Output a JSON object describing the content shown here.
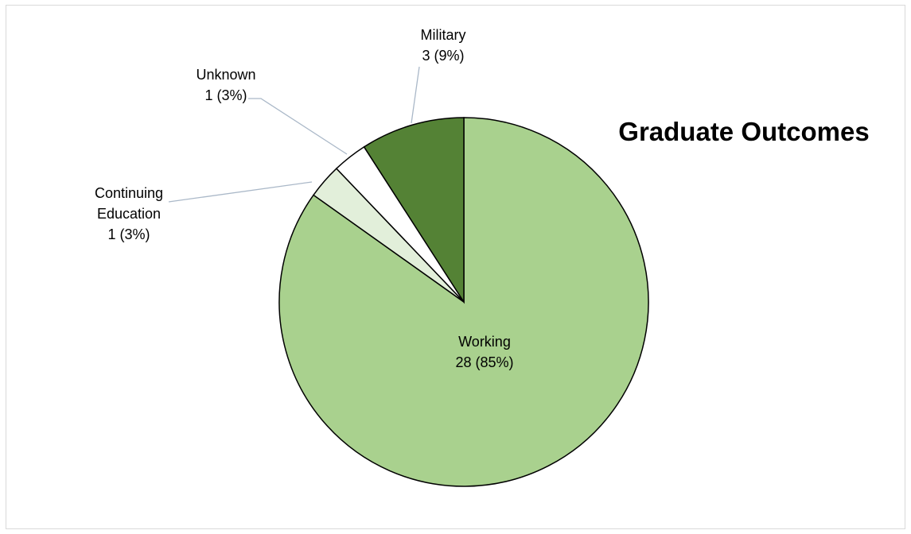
{
  "chart_data": {
    "type": "pie",
    "title": "Graduate Outcomes",
    "slices": [
      {
        "name": "Working",
        "value": 28,
        "percent": "85%",
        "color": "#a9d18e"
      },
      {
        "name": "Continuing Education",
        "value": 1,
        "percent": "3%",
        "color": "#e2efda"
      },
      {
        "name": "Unknown",
        "value": 1,
        "percent": "3%",
        "color": "#ffffff"
      },
      {
        "name": "Military",
        "value": 3,
        "percent": "9%",
        "color": "#548235"
      }
    ],
    "labels": [
      {
        "lines": [
          "Working",
          "28 (85%)"
        ]
      },
      {
        "lines": [
          "Continuing",
          "Education",
          "1 (3%)"
        ]
      },
      {
        "lines": [
          "Unknown",
          "1 (3%)"
        ]
      },
      {
        "lines": [
          "Military",
          "3 (9%)"
        ]
      }
    ],
    "start_angle": "12 o'clock",
    "direction": "clockwise",
    "legend": "none",
    "title_placement": "right"
  }
}
